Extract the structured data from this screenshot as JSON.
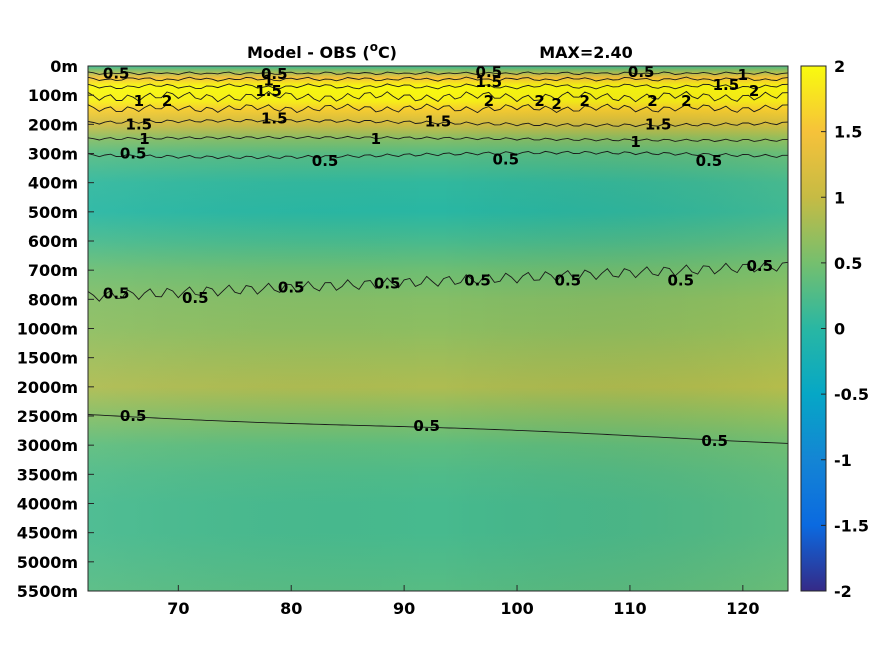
{
  "chart_data": {
    "type": "heatmap",
    "title_left": "Model - OBS (",
    "title_unit_sup": "o",
    "title_unit_after": "C)",
    "title_right": "MAX=2.40",
    "x_ticks": [
      70,
      80,
      90,
      100,
      110,
      120
    ],
    "xlim": [
      62,
      124
    ],
    "y_tick_labels": [
      "0m",
      "100m",
      "200m",
      "300m",
      "400m",
      "500m",
      "600m",
      "700m",
      "800m",
      "1000m",
      "1500m",
      "2000m",
      "2500m",
      "3000m",
      "3500m",
      "4000m",
      "4500m",
      "5000m",
      "5500m"
    ],
    "colorbar": {
      "colormap": "parula",
      "clim": [
        -2,
        2
      ],
      "ticks": [
        2,
        1.5,
        1,
        0.5,
        0,
        -0.5,
        -1,
        -1.5,
        -2
      ],
      "tick_labels": [
        "2",
        "1.5",
        "1",
        "0.5",
        "0",
        "-0.5",
        "-1",
        "-1.5",
        "-2"
      ]
    },
    "field_profile": [
      {
        "depth_level": 0.0,
        "value": 0.1
      },
      {
        "depth_level": 0.15,
        "value": 0.6
      },
      {
        "depth_level": 0.4,
        "value": 1.5
      },
      {
        "depth_level": 0.7,
        "value": 2.0
      },
      {
        "depth_level": 1.2,
        "value": 1.9
      },
      {
        "depth_level": 1.5,
        "value": 1.6
      },
      {
        "depth_level": 2.0,
        "value": 1.1
      },
      {
        "depth_level": 2.5,
        "value": 0.6
      },
      {
        "depth_level": 3.0,
        "value": 0.3
      },
      {
        "depth_level": 4.0,
        "value": 0.05
      },
      {
        "depth_level": 5.0,
        "value": 0.0
      },
      {
        "depth_level": 6.0,
        "value": 0.2
      },
      {
        "depth_level": 7.0,
        "value": 0.45
      },
      {
        "depth_level": 8.0,
        "value": 0.6
      },
      {
        "depth_level": 9.0,
        "value": 0.65
      },
      {
        "depth_level": 10.0,
        "value": 0.75
      },
      {
        "depth_level": 11.0,
        "value": 0.85
      },
      {
        "depth_level": 12.0,
        "value": 0.6
      },
      {
        "depth_level": 13.0,
        "value": 0.35
      },
      {
        "depth_level": 14.0,
        "value": 0.25
      },
      {
        "depth_level": 15.0,
        "value": 0.2
      },
      {
        "depth_level": 16.0,
        "value": 0.2
      },
      {
        "depth_level": 17.0,
        "value": 0.25
      },
      {
        "depth_level": 18.0,
        "value": 0.3
      }
    ],
    "contour_labels": [
      {
        "text": "0.5",
        "x": 64.5,
        "depth_level": 0.25
      },
      {
        "text": "1",
        "x": 66.5,
        "depth_level": 1.2
      },
      {
        "text": "2",
        "x": 69,
        "depth_level": 1.2
      },
      {
        "text": "0.5",
        "x": 78.5,
        "depth_level": 0.28
      },
      {
        "text": "1",
        "x": 78,
        "depth_level": 0.5
      },
      {
        "text": "1.5",
        "x": 78,
        "depth_level": 0.85
      },
      {
        "text": "0.5",
        "x": 97.5,
        "depth_level": 0.2
      },
      {
        "text": "1.5",
        "x": 97.5,
        "depth_level": 0.55
      },
      {
        "text": "2",
        "x": 97.5,
        "depth_level": 1.2
      },
      {
        "text": "2",
        "x": 102,
        "depth_level": 1.2
      },
      {
        "text": "2",
        "x": 103.5,
        "depth_level": 1.3
      },
      {
        "text": "2",
        "x": 106,
        "depth_level": 1.2
      },
      {
        "text": "0.5",
        "x": 111,
        "depth_level": 0.2
      },
      {
        "text": "2",
        "x": 112,
        "depth_level": 1.2
      },
      {
        "text": "2",
        "x": 115,
        "depth_level": 1.2
      },
      {
        "text": "1",
        "x": 120,
        "depth_level": 0.3
      },
      {
        "text": "1.5",
        "x": 118.5,
        "depth_level": 0.65
      },
      {
        "text": "2",
        "x": 121,
        "depth_level": 0.85
      },
      {
        "text": "1.5",
        "x": 66.5,
        "depth_level": 2.0
      },
      {
        "text": "1",
        "x": 67,
        "depth_level": 2.5
      },
      {
        "text": "1.5",
        "x": 78.5,
        "depth_level": 1.8
      },
      {
        "text": "1",
        "x": 87.5,
        "depth_level": 2.5
      },
      {
        "text": "1.5",
        "x": 93,
        "depth_level": 1.9
      },
      {
        "text": "1.5",
        "x": 112.5,
        "depth_level": 2.0
      },
      {
        "text": "1",
        "x": 110.5,
        "depth_level": 2.6
      },
      {
        "text": "0.5",
        "x": 66,
        "depth_level": 3.0
      },
      {
        "text": "0.5",
        "x": 83,
        "depth_level": 3.25
      },
      {
        "text": "0.5",
        "x": 99,
        "depth_level": 3.2
      },
      {
        "text": "0.5",
        "x": 117,
        "depth_level": 3.25
      },
      {
        "text": "0.5",
        "x": 64.5,
        "depth_level": 7.8
      },
      {
        "text": "0.5",
        "x": 71.5,
        "depth_level": 7.95
      },
      {
        "text": "0.5",
        "x": 80,
        "depth_level": 7.6
      },
      {
        "text": "0.5",
        "x": 88.5,
        "depth_level": 7.45
      },
      {
        "text": "0.5",
        "x": 96.5,
        "depth_level": 7.35
      },
      {
        "text": "0.5",
        "x": 104.5,
        "depth_level": 7.35
      },
      {
        "text": "0.5",
        "x": 114.5,
        "depth_level": 7.35
      },
      {
        "text": "0.5",
        "x": 121.5,
        "depth_level": 6.85
      },
      {
        "text": "0.5",
        "x": 66,
        "depth_level": 12.0
      },
      {
        "text": "0.5",
        "x": 92,
        "depth_level": 12.35
      },
      {
        "text": "0.5",
        "x": 117.5,
        "depth_level": 12.85
      }
    ]
  }
}
